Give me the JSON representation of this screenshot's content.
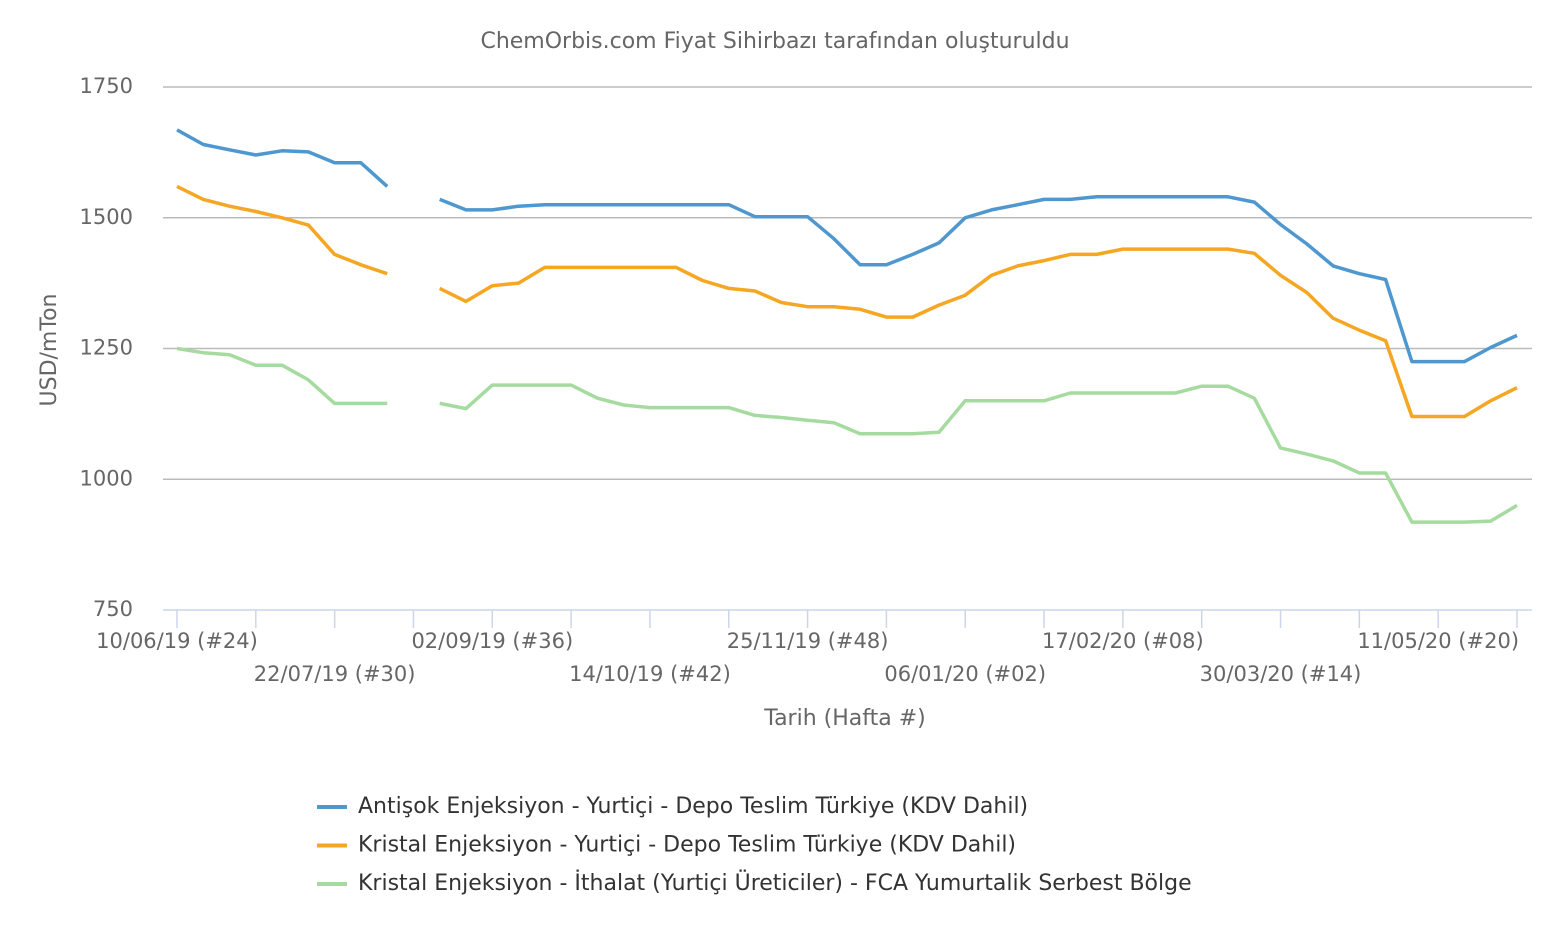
{
  "chart_data": {
    "type": "line",
    "title": "ChemOrbis.com Fiyat Sihirbazı tarafından oluşturuldu",
    "x_label": "Tarih (Hafta #)",
    "y_label": "USD/mTon",
    "categories": [
      "10/06/19 (#24)",
      null,
      null,
      null,
      null,
      null,
      "22/07/19 (#30)",
      null,
      null,
      null,
      null,
      null,
      "02/09/19 (#36)",
      null,
      null,
      null,
      null,
      null,
      "14/10/19 (#42)",
      null,
      null,
      null,
      null,
      null,
      "25/11/19 (#48)",
      null,
      null,
      null,
      null,
      null,
      "06/01/20 (#02)",
      null,
      null,
      null,
      null,
      null,
      "17/02/20 (#08)",
      null,
      null,
      null,
      null,
      null,
      "30/03/20 (#14)",
      null,
      null,
      null,
      null,
      null,
      "11/05/20 (#20)",
      null,
      null,
      null
    ],
    "ylim": [
      750,
      1750
    ],
    "yticks": [
      750,
      1000,
      1250,
      1500,
      1750
    ],
    "grid": true,
    "series": [
      {
        "name": "Antişok Enjeksiyon - Yurtiçi - Depo Teslim Türkiye  (KDV Dahil)",
        "color": "#4e98cf",
        "values": [
          1668,
          1640,
          1630,
          1620,
          1628,
          1626,
          1605,
          1605,
          1560,
          null,
          1535,
          1515,
          1515,
          1522,
          1525,
          1525,
          1525,
          1525,
          1525,
          1525,
          1525,
          1525,
          1502,
          1502,
          1502,
          1460,
          1410,
          1410,
          1430,
          1452,
          1500,
          1515,
          1525,
          1535,
          1535,
          1540,
          1540,
          1540,
          1540,
          1540,
          1540,
          1530,
          1487,
          1450,
          1408,
          1393,
          1382,
          1225,
          1225,
          1225,
          1252,
          1275
        ]
      },
      {
        "name": "Kristal Enjeksiyon - Yurtiçi - Depo Teslim Türkiye  (KDV Dahil)",
        "color": "#f5a623",
        "values": [
          1560,
          1535,
          1522,
          1512,
          1500,
          1486,
          1430,
          1410,
          1393,
          null,
          1365,
          1340,
          1370,
          1375,
          1405,
          1405,
          1405,
          1405,
          1405,
          1405,
          1380,
          1365,
          1360,
          1338,
          1330,
          1330,
          1325,
          1310,
          1310,
          1333,
          1352,
          1390,
          1408,
          1418,
          1430,
          1430,
          1440,
          1440,
          1440,
          1440,
          1440,
          1432,
          1390,
          1357,
          1308,
          1285,
          1265,
          1120,
          1120,
          1120,
          1150,
          1175
        ]
      },
      {
        "name": "Kristal Enjeksiyon - İthalat (Yurtiçi Üreticiler) - FCA Yumurtalik Serbest Bölge",
        "color": "#a6dba0",
        "values": [
          1250,
          1242,
          1238,
          1218,
          1218,
          1190,
          1145,
          1145,
          1145,
          null,
          1145,
          1135,
          1180,
          1180,
          1180,
          1180,
          1155,
          1142,
          1137,
          1137,
          1137,
          1137,
          1122,
          1118,
          1113,
          1108,
          1087,
          1087,
          1087,
          1090,
          1150,
          1150,
          1150,
          1150,
          1165,
          1165,
          1165,
          1165,
          1165,
          1178,
          1178,
          1155,
          1060,
          1048,
          1035,
          1012,
          1012,
          918,
          918,
          918,
          920,
          950
        ]
      }
    ]
  }
}
